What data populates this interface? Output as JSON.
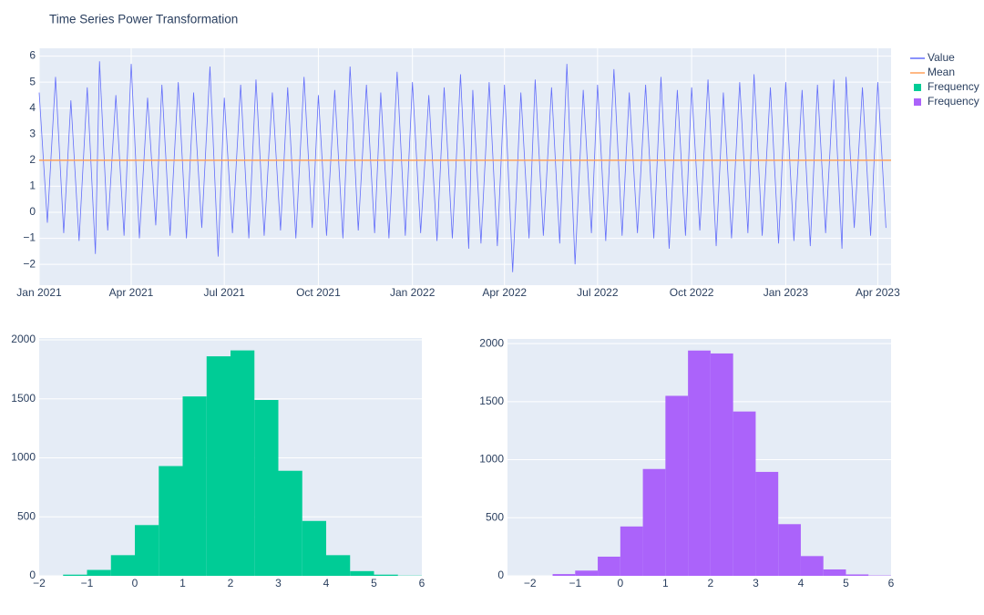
{
  "chart_data": [
    {
      "type": "line",
      "title": "Time Series Power Transformation",
      "xlim": [
        "2021-01-01",
        "2023-04-14"
      ],
      "ylim": [
        -2.8,
        6.3
      ],
      "xticks": [
        {
          "value": "2021-01-01",
          "label": "Jan 2021"
        },
        {
          "value": "2021-04-01",
          "label": "Apr 2021"
        },
        {
          "value": "2021-07-01",
          "label": "Jul 2021"
        },
        {
          "value": "2021-10-01",
          "label": "Oct 2021"
        },
        {
          "value": "2022-01-01",
          "label": "Jan 2022"
        },
        {
          "value": "2022-04-01",
          "label": "Apr 2022"
        },
        {
          "value": "2022-07-01",
          "label": "Jul 2022"
        },
        {
          "value": "2022-10-01",
          "label": "Oct 2022"
        },
        {
          "value": "2023-01-01",
          "label": "Jan 2023"
        },
        {
          "value": "2023-04-01",
          "label": "Apr 2023"
        }
      ],
      "yticks": [
        {
          "value": -2,
          "label": "−2"
        },
        {
          "value": -1,
          "label": "−1"
        },
        0,
        1,
        2,
        3,
        4,
        5,
        6
      ],
      "grid": true,
      "xgrid": true,
      "series": [
        {
          "name": "Value",
          "color": "#636efa",
          "x": [
            "2021-01-01",
            "2021-01-09",
            "2021-01-17",
            "2021-01-25",
            "2021-02-01",
            "2021-02-09",
            "2021-02-17",
            "2021-02-25",
            "2021-03-01",
            "2021-03-09",
            "2021-03-17",
            "2021-03-25",
            "2021-04-01",
            "2021-04-09",
            "2021-04-17",
            "2021-04-25",
            "2021-05-01",
            "2021-05-09",
            "2021-05-17",
            "2021-05-25",
            "2021-06-01",
            "2021-06-09",
            "2021-06-17",
            "2021-06-25",
            "2021-07-01",
            "2021-07-09",
            "2021-07-17",
            "2021-07-25",
            "2021-08-01",
            "2021-08-09",
            "2021-08-17",
            "2021-08-25",
            "2021-09-01",
            "2021-09-09",
            "2021-09-17",
            "2021-09-25",
            "2021-10-01",
            "2021-10-09",
            "2021-10-17",
            "2021-10-25",
            "2021-11-01",
            "2021-11-09",
            "2021-11-17",
            "2021-11-25",
            "2021-12-01",
            "2021-12-09",
            "2021-12-17",
            "2021-12-25",
            "2022-01-01",
            "2022-01-09",
            "2022-01-17",
            "2022-01-25",
            "2022-02-01",
            "2022-02-09",
            "2022-02-17",
            "2022-02-25",
            "2022-03-01",
            "2022-03-09",
            "2022-03-17",
            "2022-03-25",
            "2022-04-01",
            "2022-04-09",
            "2022-04-17",
            "2022-04-25",
            "2022-05-01",
            "2022-05-09",
            "2022-05-17",
            "2022-05-25",
            "2022-06-01",
            "2022-06-09",
            "2022-06-17",
            "2022-06-25",
            "2022-07-01",
            "2022-07-09",
            "2022-07-17",
            "2022-07-25",
            "2022-08-01",
            "2022-08-09",
            "2022-08-17",
            "2022-08-25",
            "2022-09-01",
            "2022-09-09",
            "2022-09-17",
            "2022-09-25",
            "2022-10-01",
            "2022-10-09",
            "2022-10-17",
            "2022-10-25",
            "2022-11-01",
            "2022-11-09",
            "2022-11-17",
            "2022-11-25",
            "2022-12-01",
            "2022-12-09",
            "2022-12-17",
            "2022-12-25",
            "2023-01-01",
            "2023-01-09",
            "2023-01-17",
            "2023-01-25",
            "2023-02-01",
            "2023-02-09",
            "2023-02-17",
            "2023-02-25",
            "2023-03-01",
            "2023-03-09",
            "2023-03-17",
            "2023-03-25",
            "2023-04-01",
            "2023-04-09"
          ],
          "values": [
            4.6,
            -0.4,
            5.2,
            -0.8,
            4.3,
            -1.1,
            4.8,
            -1.6,
            5.8,
            -0.7,
            4.5,
            -0.9,
            5.7,
            -1.0,
            4.4,
            -0.5,
            4.9,
            -0.9,
            5.0,
            -1.0,
            4.6,
            -0.6,
            5.6,
            -1.7,
            4.4,
            -0.8,
            4.9,
            -1.0,
            5.1,
            -0.9,
            4.6,
            -0.7,
            4.8,
            -1.0,
            5.2,
            -0.6,
            4.5,
            -0.9,
            4.7,
            -1.0,
            5.6,
            -0.7,
            4.9,
            -0.8,
            4.6,
            -1.0,
            5.4,
            -0.9,
            5.0,
            -0.8,
            4.5,
            -1.1,
            4.8,
            -1.0,
            5.3,
            -1.4,
            4.7,
            -1.2,
            5.0,
            -1.3,
            4.9,
            -2.3,
            4.6,
            -1.0,
            5.1,
            -0.9,
            4.8,
            -1.2,
            5.7,
            -2.0,
            4.7,
            -0.8,
            4.9,
            -1.1,
            5.5,
            -0.9,
            4.6,
            -0.8,
            4.9,
            -1.0,
            5.2,
            -1.4,
            4.7,
            -0.9,
            4.8,
            -0.7,
            5.1,
            -1.3,
            4.6,
            -1.0,
            5.0,
            -0.8,
            5.3,
            -0.9,
            4.8,
            -1.2,
            5.0,
            -1.1,
            4.7,
            -1.3,
            4.9,
            -0.8,
            5.1,
            -1.4,
            5.2,
            -0.6,
            4.8,
            -0.9,
            5.0,
            -0.6
          ]
        },
        {
          "name": "Mean",
          "color": "#ffa15a",
          "x": [
            "2021-01-01",
            "2023-04-14"
          ],
          "values": [
            2,
            2
          ]
        }
      ]
    },
    {
      "type": "histogram",
      "name": "Frequency",
      "color": "#00cc96",
      "bins": [
        -1.5,
        -1,
        -0.5,
        0,
        0.5,
        1,
        1.5,
        2,
        2.5,
        3,
        3.5,
        4,
        4.5,
        5,
        5.5,
        6
      ],
      "counts": [
        10,
        50,
        175,
        430,
        930,
        1520,
        1860,
        1910,
        1490,
        890,
        465,
        175,
        40,
        10,
        2
      ],
      "xlim": [
        -2,
        6
      ],
      "ylim": [
        0,
        2015
      ],
      "xticks": [
        {
          "value": -2,
          "label": "−2"
        },
        {
          "value": -1,
          "label": "−1"
        },
        0,
        1,
        2,
        3,
        4,
        5,
        6
      ],
      "yticks": [
        0,
        500,
        1000,
        1500,
        2000
      ],
      "grid": true,
      "xgrid": false
    },
    {
      "type": "histogram",
      "name": "Frequency",
      "color": "#ab63fa",
      "bins": [
        -1.5,
        -1,
        -0.5,
        0,
        0.5,
        1,
        1.5,
        2,
        2.5,
        3,
        3.5,
        4,
        4.5,
        5,
        5.5,
        6
      ],
      "counts": [
        15,
        45,
        165,
        425,
        920,
        1550,
        1940,
        1915,
        1415,
        895,
        445,
        170,
        55,
        12,
        3
      ],
      "xlim": [
        -2.5,
        6
      ],
      "ylim": [
        0,
        2040
      ],
      "xticks": [
        {
          "value": -2,
          "label": "−2"
        },
        {
          "value": -1,
          "label": "−1"
        },
        0,
        1,
        2,
        3,
        4,
        5,
        6
      ],
      "yticks": [
        0,
        500,
        1000,
        1500,
        2000
      ],
      "grid": true,
      "xgrid": false
    }
  ]
}
